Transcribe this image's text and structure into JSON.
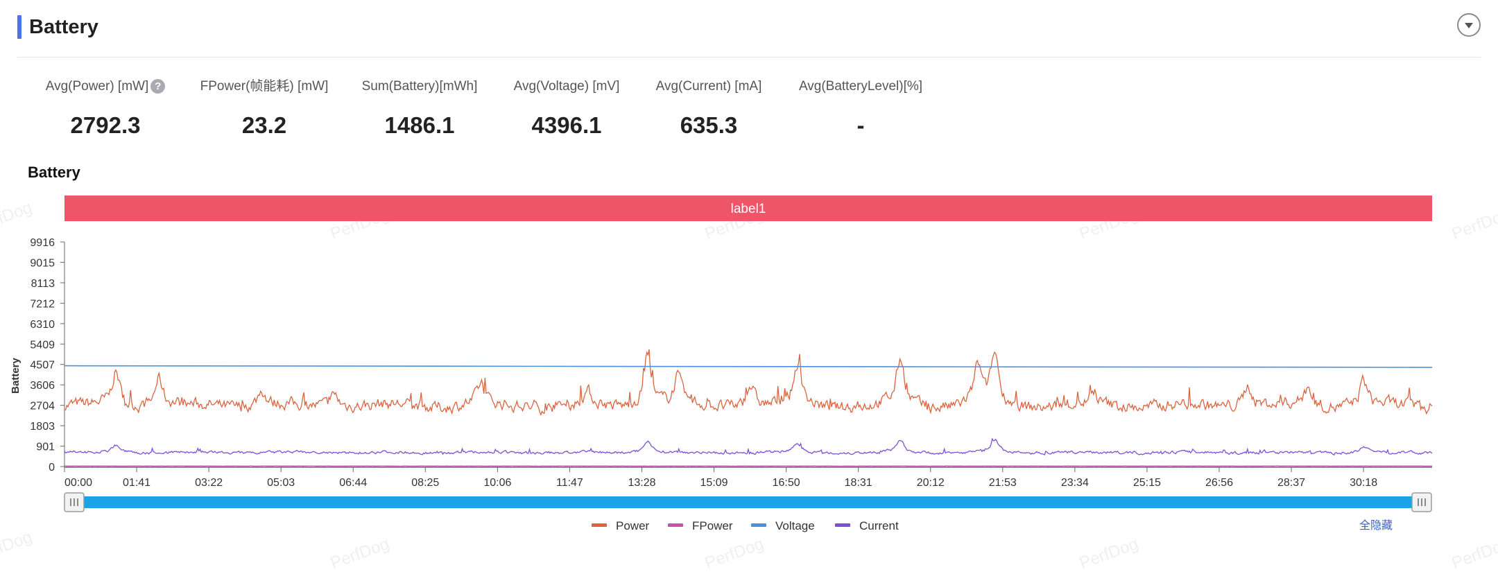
{
  "section": {
    "title": "Battery"
  },
  "metrics": [
    {
      "label": "Avg(Power) [mW]",
      "value": "2792.3",
      "has_help": true
    },
    {
      "label": "FPower(帧能耗) [mW]",
      "value": "23.2"
    },
    {
      "label": "Sum(Battery)[mWh]",
      "value": "1486.1"
    },
    {
      "label": "Avg(Voltage) [mV]",
      "value": "4396.1"
    },
    {
      "label": "Avg(Current) [mA]",
      "value": "635.3"
    },
    {
      "label": "Avg(BatteryLevel)[%]",
      "value": "-"
    }
  ],
  "watermark_text": "PerfDog",
  "legend_hide_all": "全隐藏",
  "colors": {
    "accent": "#4a73e8",
    "label_band": "#ee5566",
    "power": "#d9643f",
    "fpower": "#c850b5",
    "voltage": "#4a90e2",
    "current": "#7b4fd6",
    "slider": "#1aa3e8"
  },
  "chart_data": {
    "type": "line",
    "title": "Battery",
    "ylabel": "Battery",
    "xlabel": "",
    "label_band": "label1",
    "ylim": [
      0,
      9916
    ],
    "y_ticks": [
      "0",
      "901",
      "1803",
      "2704",
      "3606",
      "4507",
      "5409",
      "6310",
      "7212",
      "8113",
      "9015",
      "9916"
    ],
    "x_ticks": [
      "00:00",
      "01:41",
      "03:22",
      "05:03",
      "06:44",
      "08:25",
      "10:06",
      "11:47",
      "13:28",
      "15:09",
      "16:50",
      "18:31",
      "20:12",
      "21:53",
      "23:34",
      "25:15",
      "26:56",
      "28:37",
      "30:18"
    ],
    "x_range_minutes": [
      0,
      31.9
    ],
    "series": [
      {
        "name": "Power",
        "baseline": 2700,
        "noise": 250,
        "peaks": [
          [
            1.2,
            1100
          ],
          [
            2.2,
            900
          ],
          [
            4.6,
            500
          ],
          [
            6.3,
            400
          ],
          [
            9.7,
            600
          ],
          [
            12.2,
            400
          ],
          [
            13.6,
            1700
          ],
          [
            14.3,
            900
          ],
          [
            16.0,
            700
          ],
          [
            17.1,
            1300
          ],
          [
            19.5,
            1500
          ],
          [
            21.3,
            1200
          ],
          [
            21.7,
            1600
          ],
          [
            24.0,
            300
          ],
          [
            27.6,
            700
          ],
          [
            29.0,
            600
          ],
          [
            30.3,
            800
          ]
        ]
      },
      {
        "name": "FPower",
        "baseline": 23,
        "noise": 3,
        "peaks": []
      },
      {
        "name": "Voltage",
        "start": 4450,
        "end": 4380
      },
      {
        "name": "Current",
        "baseline": 620,
        "noise": 60,
        "peaks": [
          [
            1.2,
            250
          ],
          [
            13.6,
            400
          ],
          [
            17.1,
            300
          ],
          [
            19.5,
            350
          ],
          [
            21.7,
            400
          ],
          [
            30.3,
            150
          ]
        ]
      }
    ]
  }
}
